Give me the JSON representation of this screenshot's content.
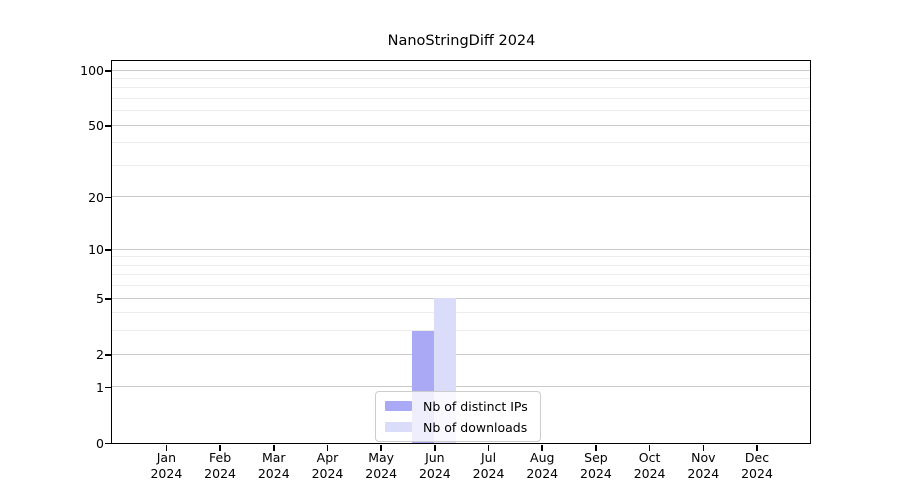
{
  "chart_data": {
    "type": "bar",
    "title": "NanoStringDiff 2024",
    "categories": [
      "Jan",
      "Feb",
      "Mar",
      "Apr",
      "May",
      "Jun",
      "Jul",
      "Aug",
      "Sep",
      "Oct",
      "Nov",
      "Dec"
    ],
    "category_sublabel": "2024",
    "series": [
      {
        "name": "Nb of distinct IPs",
        "color": "#a9a9f6",
        "values": [
          0,
          0,
          0,
          0,
          0,
          3,
          0,
          0,
          0,
          0,
          0,
          0
        ]
      },
      {
        "name": "Nb of downloads",
        "color": "#dbdbfa",
        "values": [
          0,
          0,
          0,
          0,
          0,
          5,
          0,
          0,
          0,
          0,
          0,
          0
        ]
      }
    ],
    "yscale": "log1p",
    "ylim": [
      0,
      112
    ],
    "yticks": [
      0,
      1,
      2,
      5,
      10,
      20,
      50,
      100
    ],
    "minor_gridlines": [
      3,
      4,
      6,
      7,
      8,
      9,
      30,
      40,
      60,
      70,
      80,
      90
    ],
    "grid": true,
    "legend_position": "inside-bottom-center",
    "colors": {
      "major_grid": "#c9c9c9",
      "minor_grid": "#ececec",
      "axis": "#000000"
    }
  }
}
